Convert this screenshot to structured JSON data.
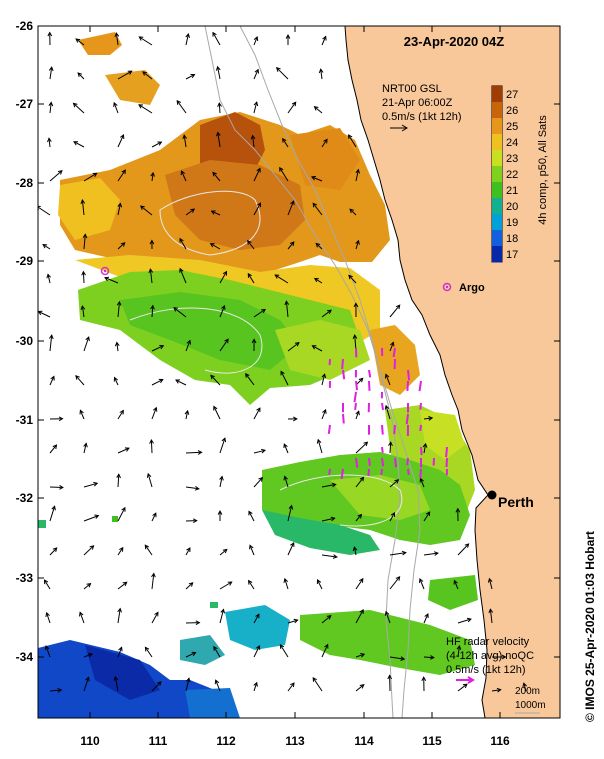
{
  "map": {
    "date_label": "23-Apr-2020 04Z",
    "lat_labels": [
      "-26",
      "-27",
      "-28",
      "-29",
      "-30",
      "-31",
      "-32",
      "-33",
      "-34"
    ],
    "lon_labels": [
      "110",
      "111",
      "112",
      "113",
      "114",
      "115",
      "116"
    ],
    "lat_range": [
      -34.85,
      -26
    ],
    "lon_range": [
      109.25,
      116.95
    ]
  },
  "gsl_legend": {
    "line1": "NRT00 GSL",
    "line2": "21-Apr 06:00Z",
    "line3": "0.5m/s (1kt 12h)"
  },
  "colorbar": {
    "title": "4h comp, p50, All Sats",
    "ticks": [
      "27",
      "26",
      "25",
      "24",
      "23",
      "22",
      "21",
      "20",
      "19",
      "18",
      "17"
    ],
    "colors": [
      "#a03c05",
      "#c8640a",
      "#e6961a",
      "#f0c020",
      "#c8e020",
      "#80d020",
      "#40c020",
      "#10b090",
      "#00a0d8",
      "#1060e0",
      "#0828a8"
    ]
  },
  "places": {
    "perth": "Perth",
    "argo": "Argo"
  },
  "hf_legend": {
    "line1": "HF radar velocity",
    "line2": "(4-12h avg) noQC",
    "line3": "0.5m/s (1kt 12h)"
  },
  "isobaths": {
    "shallow": "200m",
    "deep": "1000m"
  },
  "credit": "© IMOS 25-Apr-2020 01:03 Hobart",
  "colors": {
    "land": "#f8c79a",
    "coast": "#000000",
    "isobath": "#a8a8a8",
    "hf_arrow": "#e020e0",
    "argo": "#d030d0"
  }
}
